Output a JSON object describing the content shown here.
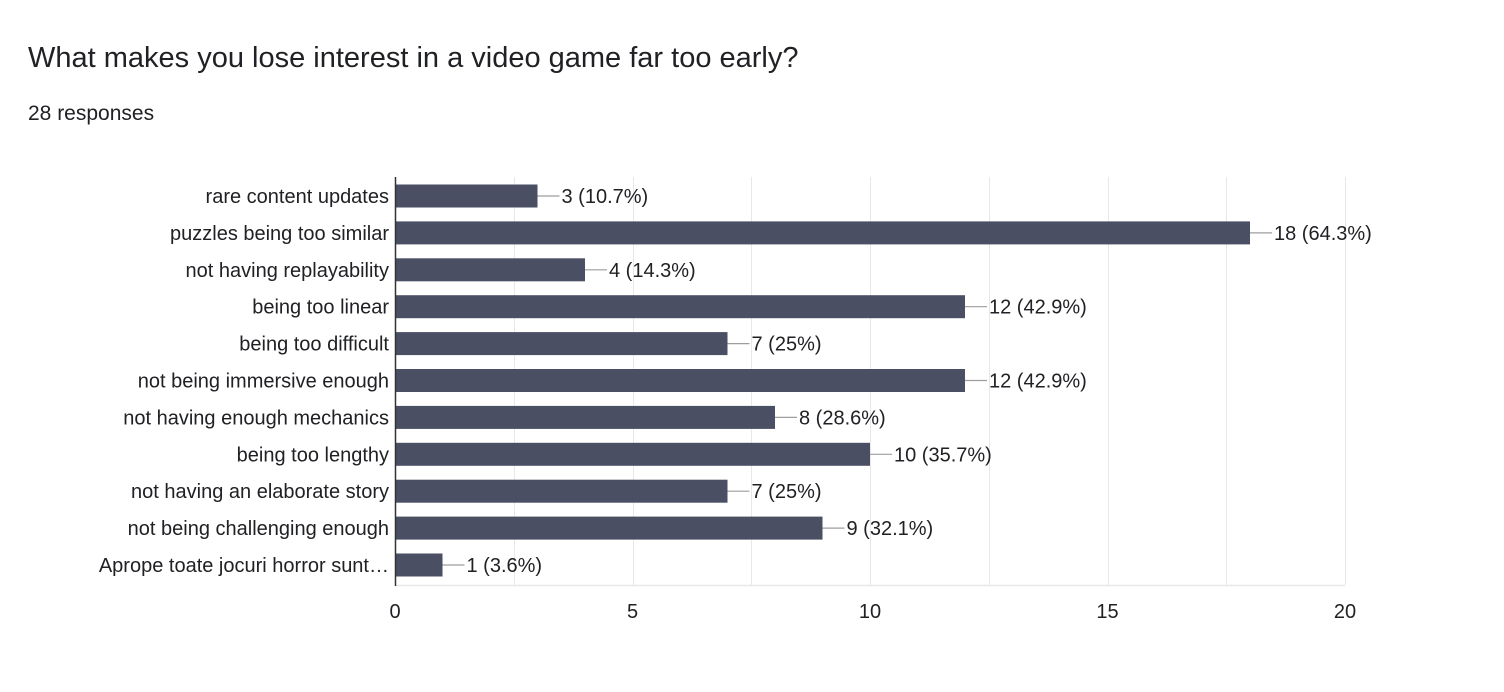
{
  "title": "What makes you lose interest in a video game far too early?",
  "responses": "28 responses",
  "colors": {
    "bar": "#4a4f64",
    "text": "#202124",
    "grid": "#e8e8e8",
    "axis": "#333333",
    "leader": "#9e9e9e"
  },
  "chart_data": {
    "type": "bar",
    "orientation": "horizontal",
    "title": "What makes you lose interest in a video game far too early?",
    "subtitle": "28 responses",
    "categories": [
      "rare content updates",
      "puzzles being too similar",
      "not having replayability",
      "being too linear",
      "being too difficult",
      "not being immersive enough",
      "not having enough mechanics",
      "being too lengthy",
      "not having an elaborate story",
      "not being challenging enough",
      "Aprope toate jocuri horror sunt…"
    ],
    "values": [
      3,
      18,
      4,
      12,
      7,
      12,
      8,
      10,
      7,
      9,
      1
    ],
    "data_labels": [
      "3 (10.7%)",
      "18 (64.3%)",
      "4 (14.3%)",
      "12 (42.9%)",
      "7 (25%)",
      "12 (42.9%)",
      "8 (28.6%)",
      "10 (35.7%)",
      "7 (25%)",
      "9 (32.1%)",
      "1 (3.6%)"
    ],
    "xlim": [
      0,
      20
    ],
    "xticks": [
      0,
      5,
      10,
      15,
      20
    ],
    "xtick_labels": [
      "0",
      "5",
      "10",
      "15",
      "20"
    ],
    "xlabel": "",
    "ylabel": "",
    "grid": true,
    "legend": "none"
  }
}
